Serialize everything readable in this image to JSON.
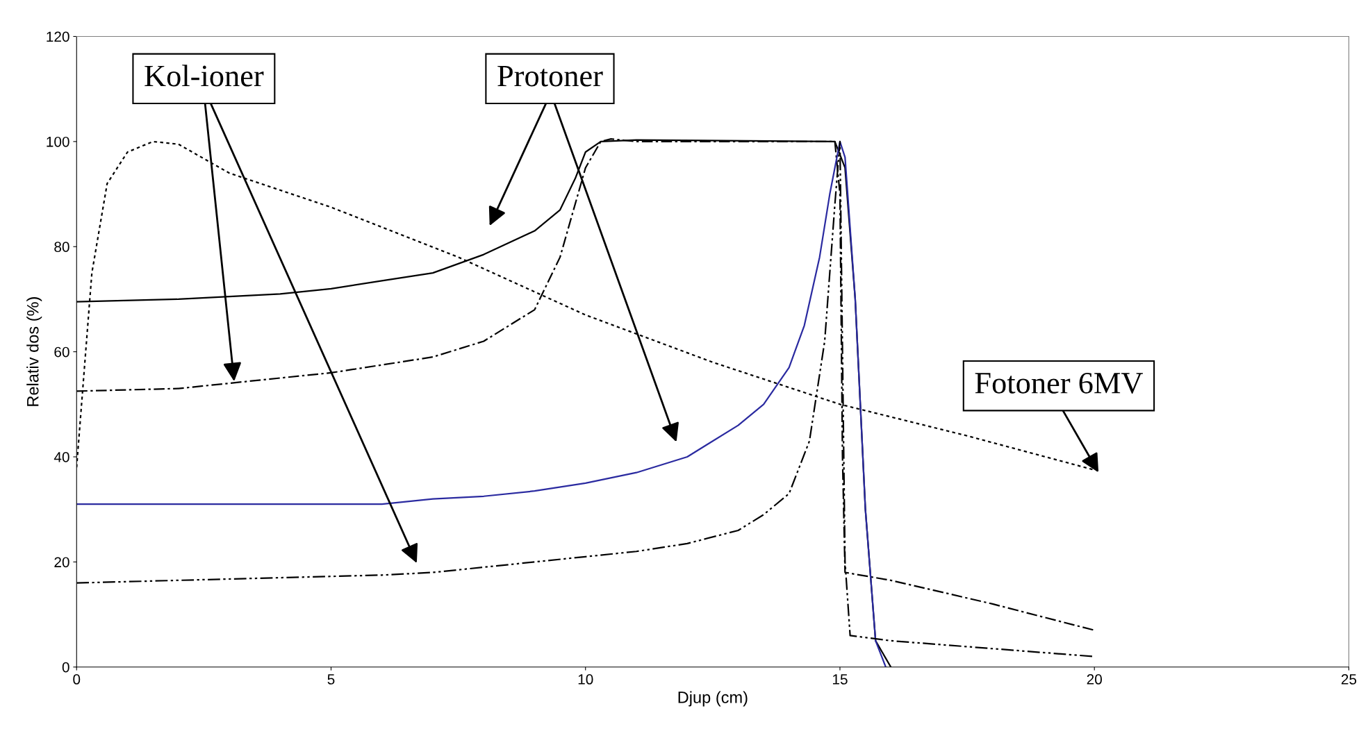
{
  "chart_data": {
    "type": "line",
    "xlabel": "Djup (cm)",
    "ylabel": "Relativ dos (%)",
    "xlim": [
      0,
      25
    ],
    "xticks": [
      0,
      5,
      10,
      15,
      20,
      25
    ],
    "ylim": [
      0,
      120
    ],
    "yticks": [
      0,
      20,
      40,
      60,
      80,
      100,
      120
    ],
    "grid": false,
    "legend": false,
    "marker": "none",
    "series": [
      {
        "color": "#000000",
        "line_style": "dotted",
        "x": [
          0,
          0.3,
          0.6,
          1,
          1.5,
          2,
          3,
          5,
          7.5,
          10,
          12.5,
          15,
          17.5,
          20
        ],
        "values": [
          38,
          75,
          92,
          98,
          100,
          99.5,
          94,
          87.5,
          78,
          67,
          58,
          50,
          44,
          37.5
        ]
      },
      {
        "color": "#000000",
        "line_style": "solid",
        "x": [
          0,
          2,
          4,
          5,
          6,
          7,
          8,
          9,
          9.5,
          9.8,
          10,
          10.3,
          11,
          14.9,
          15.1,
          15.3,
          15.5,
          15.7,
          16
        ],
        "values": [
          69.5,
          70,
          71,
          72,
          73.5,
          75,
          78.5,
          83,
          87,
          93,
          98,
          100,
          100.3,
          100,
          95,
          70,
          30,
          5,
          0
        ]
      },
      {
        "color": "#000000",
        "line_style": "dashed",
        "x": [
          0,
          2,
          4,
          5,
          6,
          7,
          8,
          9,
          9.5,
          10,
          10.3,
          10.5,
          11,
          14.9,
          15,
          15.05,
          15.1,
          16,
          18,
          20
        ],
        "values": [
          52.5,
          53,
          55,
          56,
          57.5,
          59,
          62,
          68,
          78,
          95,
          100,
          100.5,
          100,
          100,
          90,
          40,
          18,
          16.5,
          12,
          7
        ]
      },
      {
        "color": "#2a2aa0",
        "line_style": "solid",
        "x": [
          0,
          5,
          6,
          7,
          8,
          9,
          10,
          11,
          12,
          13,
          13.5,
          14,
          14.3,
          14.6,
          14.8,
          15,
          15.1,
          15.3,
          15.5,
          15.7,
          15.9
        ],
        "values": [
          31,
          31,
          31,
          32,
          32.5,
          33.5,
          35,
          37,
          40,
          46,
          50,
          57,
          65,
          78,
          90,
          100,
          97,
          70,
          30,
          5,
          0
        ]
      },
      {
        "color": "#000000",
        "line_style": "dashdot",
        "x": [
          0,
          2,
          4,
          6,
          7,
          8,
          9,
          10,
          11,
          12,
          13,
          13.5,
          14,
          14.4,
          14.7,
          14.9,
          15,
          15.05,
          15.1,
          15.2,
          16,
          18,
          20
        ],
        "values": [
          16,
          16.5,
          17,
          17.5,
          18,
          19,
          20,
          21,
          22,
          23.5,
          26,
          29,
          33,
          43,
          62,
          88,
          100,
          60,
          20,
          6,
          5,
          3.5,
          2
        ]
      }
    ],
    "annotations": [
      "Kol-ioner",
      "Protoner",
      "Fotoner 6MV"
    ]
  }
}
